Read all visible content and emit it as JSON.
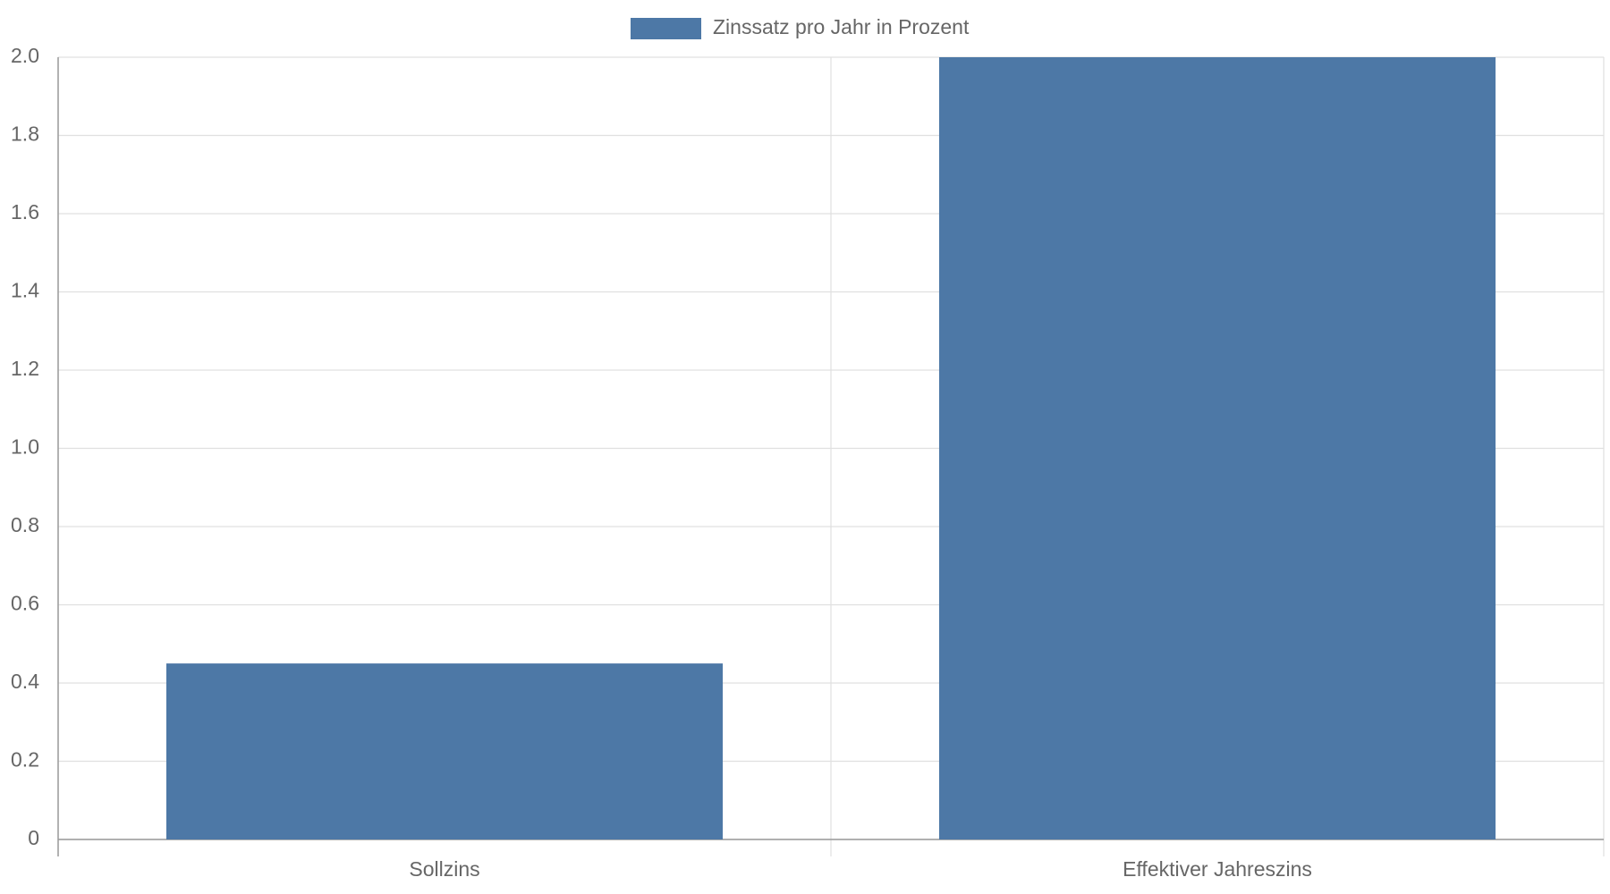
{
  "chart_data": {
    "type": "bar",
    "categories": [
      "Sollzins",
      "Effektiver Jahreszins"
    ],
    "series": [
      {
        "name": "Zinssatz pro Jahr in Prozent",
        "color": "#4d78a6",
        "values": [
          0.45,
          2.0
        ]
      }
    ],
    "ylim": [
      0,
      2
    ],
    "yticks": [
      0,
      0.2,
      0.4,
      0.6,
      0.8,
      {
        "value": 1,
        "label": "1.0"
      },
      1.2,
      1.4,
      1.6,
      1.8,
      {
        "value": 2,
        "label": "2.0"
      }
    ],
    "grid": true,
    "legend": "top"
  }
}
